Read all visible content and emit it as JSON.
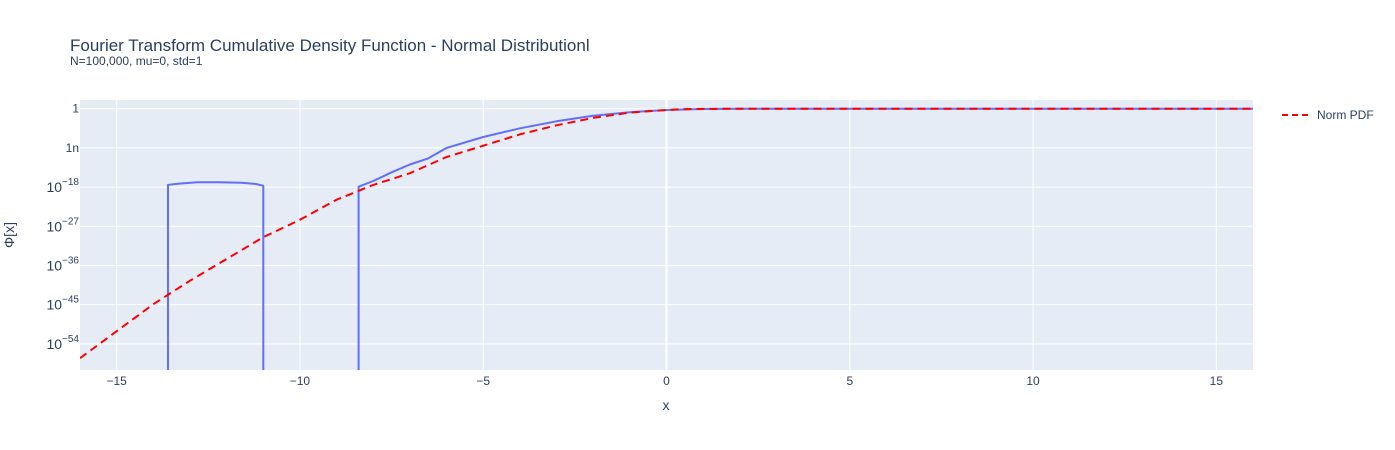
{
  "chart_data": {
    "type": "line",
    "title": "Fourier Transform Cumulative Density Function - Normal Distributionl",
    "subtitle": "N=100,000, mu=0, std=1",
    "xlabel": "x",
    "ylabel": "Φ[x]",
    "xlim": [
      -16,
      16
    ],
    "ylim_log10": [
      -60,
      2
    ],
    "y_scale": "log",
    "x_ticks": [
      -15,
      -10,
      -5,
      0,
      5,
      10,
      15
    ],
    "x_tick_labels": [
      "−15",
      "−10",
      "−5",
      "0",
      "5",
      "10",
      "15"
    ],
    "y_ticks": [
      {
        "exp": 0,
        "base": "1",
        "sup": ""
      },
      {
        "exp": -9,
        "base": "1n",
        "sup": ""
      },
      {
        "exp": -18,
        "base": "10",
        "sup": "−18"
      },
      {
        "exp": -27,
        "base": "10",
        "sup": "−27"
      },
      {
        "exp": -36,
        "base": "10",
        "sup": "−36"
      },
      {
        "exp": -45,
        "base": "10",
        "sup": "−45"
      },
      {
        "exp": -54,
        "base": "10",
        "sup": "−54"
      }
    ],
    "grid": true,
    "legend_position": "top-right",
    "colors": {
      "plot_bg": "#e5ecf6",
      "grid": "#ffffff",
      "fft_series": "#636efa",
      "norm_series": "#ff0000"
    },
    "series": [
      {
        "name": "",
        "style": "solid",
        "color": "#636efa",
        "segments": [
          [
            [
              -13.6,
              -70
            ],
            [
              -13.6,
              -17.5
            ],
            [
              -13.3,
              -17.2
            ],
            [
              -12.8,
              -16.9
            ],
            [
              -12.2,
              -16.9
            ],
            [
              -11.6,
              -17.0
            ],
            [
              -11.2,
              -17.3
            ],
            [
              -11.0,
              -17.7
            ],
            [
              -11.0,
              -70
            ]
          ],
          [
            [
              -8.4,
              -70
            ],
            [
              -8.4,
              -17.9
            ],
            [
              -8.0,
              -16.6
            ],
            [
              -7.5,
              -14.6
            ],
            [
              -7.0,
              -12.8
            ],
            [
              -6.5,
              -11.4
            ],
            [
              -6.0,
              -9.0
            ],
            [
              -5.0,
              -6.5
            ],
            [
              -4.0,
              -4.5
            ],
            [
              -3.0,
              -2.9
            ],
            [
              -2.0,
              -1.6
            ],
            [
              -1.0,
              -0.8
            ],
            [
              0.0,
              -0.3
            ],
            [
              1.0,
              -0.07
            ],
            [
              2.0,
              -0.01
            ],
            [
              3.0,
              0
            ],
            [
              16.0,
              0
            ]
          ]
        ]
      },
      {
        "name": "Norm PDF",
        "style": "dashed",
        "color": "#ff0000",
        "x": [
          -16,
          -15,
          -14,
          -13,
          -12,
          -11,
          -10,
          -9,
          -8,
          -7,
          -6,
          -5,
          -4,
          -3,
          -2,
          -1,
          0,
          0.5,
          1,
          1.5,
          2,
          3,
          4,
          6,
          8,
          10,
          12,
          14,
          16
        ],
        "y_log10": [
          -57.3,
          -51.1,
          -44.9,
          -39.5,
          -34.5,
          -29.5,
          -25.5,
          -20.9,
          -17.5,
          -14.8,
          -11.1,
          -8.5,
          -5.9,
          -3.8,
          -2.1,
          -0.9,
          -0.3,
          -0.1,
          -0.04,
          -0.015,
          -0.01,
          -0.001,
          0,
          0,
          0,
          0,
          0,
          0,
          0
        ]
      }
    ]
  }
}
